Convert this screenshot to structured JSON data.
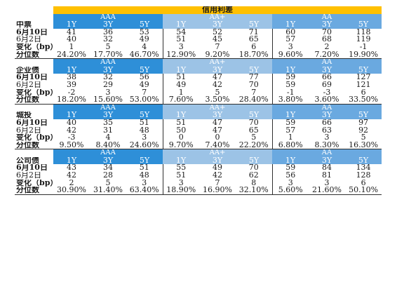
{
  "title": "信用利差",
  "tenors": [
    "1Y",
    "3Y",
    "5Y"
  ],
  "ratings": [
    "AAA",
    "AA+",
    "AA"
  ],
  "row_labels": [
    "6月10日",
    "6月2日",
    "变化（bp）",
    "分位数"
  ],
  "sections": [
    {
      "name": "中票",
      "jun10": [
        "41",
        "36",
        "53",
        "54",
        "52",
        "71",
        "60",
        "70",
        "118"
      ],
      "jun2": [
        "40",
        "32",
        "49",
        "51",
        "45",
        "65",
        "57",
        "68",
        "119"
      ],
      "change": [
        "1",
        "5",
        "4",
        "3",
        "7",
        "6",
        "3",
        "2",
        "-1"
      ],
      "pct": [
        "24.20%",
        "17.70%",
        "46.70%",
        "12.90%",
        "9.20%",
        "18.70%",
        "9.60%",
        "7.20%",
        "19.90%"
      ]
    },
    {
      "name": "企业债",
      "jun10": [
        "38",
        "32",
        "56",
        "51",
        "47",
        "77",
        "59",
        "66",
        "127"
      ],
      "jun2": [
        "39",
        "29",
        "49",
        "49",
        "42",
        "70",
        "59",
        "69",
        "121"
      ],
      "change": [
        "-2",
        "3",
        "7",
        "1",
        "5",
        "7",
        "-1",
        "-3",
        "6"
      ],
      "pct": [
        "18.20%",
        "15.60%",
        "53.00%",
        "7.60%",
        "3.50%",
        "28.40%",
        "3.80%",
        "3.60%",
        "33.50%"
      ]
    },
    {
      "name": "城投",
      "jun10": [
        "40",
        "35",
        "51",
        "51",
        "47",
        "70",
        "59",
        "66",
        "97"
      ],
      "jun2": [
        "42",
        "31",
        "48",
        "50",
        "47",
        "65",
        "57",
        "63",
        "92"
      ],
      "change": [
        "-3",
        "4",
        "3",
        "0",
        "0",
        "5",
        "1",
        "3",
        "5"
      ],
      "pct": [
        "9.50%",
        "8.40%",
        "24.60%",
        "9.70%",
        "7.40%",
        "22.20%",
        "6.80%",
        "8.30%",
        "16.30%"
      ]
    },
    {
      "name": "公司债",
      "jun10": [
        "43",
        "34",
        "51",
        "55",
        "49",
        "70",
        "59",
        "84",
        "134"
      ],
      "jun2": [
        "42",
        "28",
        "48",
        "51",
        "42",
        "62",
        "56",
        "81",
        "128"
      ],
      "change": [
        "2",
        "5",
        "3",
        "3",
        "7",
        "8",
        "3",
        "3",
        "6"
      ],
      "pct": [
        "30.90%",
        "31.40%",
        "63.40%",
        "18.90%",
        "16.90%",
        "32.10%",
        "5.60%",
        "21.60%",
        "50.10%"
      ]
    }
  ]
}
